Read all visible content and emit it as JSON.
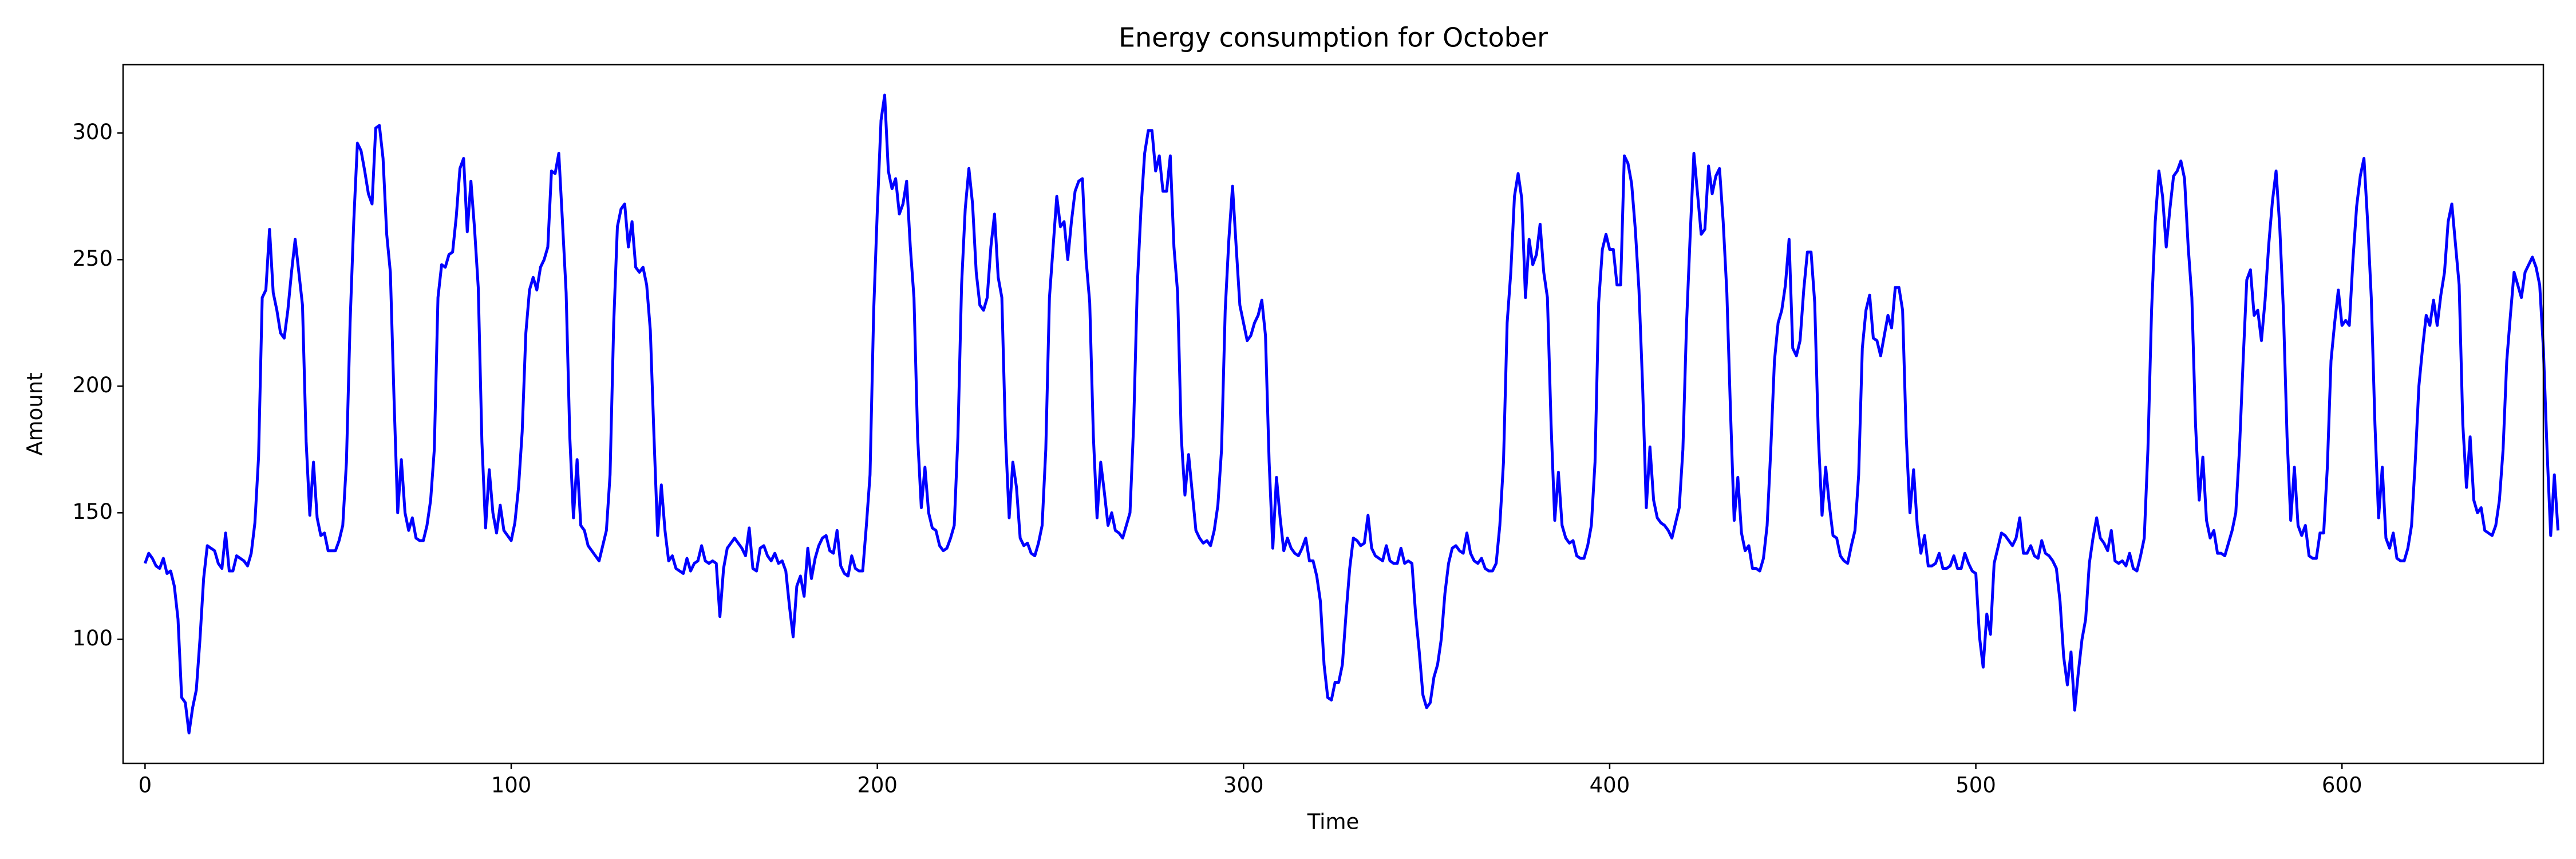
{
  "chart_data": {
    "type": "line",
    "title": "Energy consumption for October",
    "x_label": "Time",
    "y_label": "Amount",
    "color": "#0000ff",
    "xlim": [
      -6,
      655
    ],
    "xticks": [
      0,
      100,
      200,
      300,
      400,
      500,
      600
    ],
    "ylim": [
      51,
      327
    ],
    "yticks": [
      100,
      150,
      200,
      250,
      300
    ],
    "values": [
      130,
      134,
      132,
      129,
      128,
      132,
      126,
      127,
      121,
      108,
      77,
      75,
      63,
      73,
      80,
      100,
      124,
      137,
      136,
      135,
      130,
      128,
      142,
      127,
      127,
      133,
      132,
      131,
      129,
      134,
      146,
      172,
      235,
      238,
      262,
      237,
      230,
      221,
      219,
      230,
      245,
      258,
      245,
      232,
      178,
      149,
      170,
      148,
      141,
      142,
      135,
      135,
      135,
      139,
      145,
      170,
      225,
      265,
      296,
      293,
      285,
      276,
      272,
      302,
      303,
      290,
      260,
      245,
      195,
      150,
      171,
      150,
      143,
      148,
      140,
      139,
      139,
      145,
      155,
      175,
      235,
      248,
      247,
      252,
      253,
      267,
      286,
      290,
      261,
      281,
      262,
      239,
      178,
      144,
      167,
      150,
      142,
      153,
      143,
      141,
      139,
      146,
      160,
      182,
      221,
      238,
      243,
      238,
      247,
      250,
      255,
      285,
      284,
      292,
      265,
      237,
      180,
      148,
      171,
      145,
      143,
      137,
      135,
      133,
      131,
      137,
      143,
      165,
      225,
      263,
      270,
      272,
      255,
      265,
      247,
      245,
      247,
      240,
      222,
      180,
      141,
      161,
      143,
      131,
      133,
      128,
      127,
      126,
      132,
      127,
      130,
      131,
      137,
      131,
      130,
      131,
      130,
      109,
      128,
      136,
      138,
      140,
      138,
      136,
      133,
      144,
      128,
      127,
      136,
      137,
      133,
      131,
      134,
      130,
      131,
      127,
      113,
      101,
      121,
      125,
      117,
      136,
      124,
      132,
      137,
      140,
      141,
      135,
      134,
      143,
      129,
      126,
      125,
      133,
      128,
      127,
      127,
      145,
      165,
      230,
      270,
      305,
      315,
      285,
      278,
      282,
      268,
      272,
      281,
      255,
      235,
      180,
      152,
      168,
      150,
      144,
      143,
      137,
      135,
      136,
      140,
      145,
      180,
      240,
      270,
      286,
      272,
      245,
      232,
      230,
      235,
      255,
      268,
      243,
      235,
      180,
      148,
      170,
      160,
      140,
      137,
      138,
      134,
      133,
      138,
      145,
      175,
      235,
      255,
      275,
      263,
      265,
      250,
      265,
      277,
      281,
      282,
      250,
      233,
      180,
      148,
      170,
      158,
      145,
      150,
      143,
      142,
      140,
      145,
      150,
      185,
      240,
      270,
      292,
      301,
      301,
      285,
      291,
      277,
      277,
      291,
      255,
      237,
      180,
      157,
      173,
      158,
      143,
      140,
      138,
      139,
      137,
      143,
      153,
      175,
      230,
      258,
      279,
      255,
      232,
      225,
      218,
      220,
      225,
      228,
      234,
      220,
      170,
      136,
      164,
      148,
      135,
      140,
      136,
      134,
      133,
      136,
      140,
      131,
      131,
      125,
      115,
      90,
      77,
      76,
      83,
      83,
      90,
      110,
      128,
      140,
      139,
      137,
      138,
      149,
      136,
      133,
      132,
      131,
      137,
      131,
      130,
      130,
      136,
      130,
      131,
      130,
      110,
      95,
      78,
      73,
      75,
      85,
      90,
      100,
      118,
      130,
      136,
      137,
      135,
      134,
      142,
      134,
      131,
      130,
      132,
      128,
      127,
      127,
      130,
      145,
      170,
      225,
      245,
      275,
      284,
      274,
      235,
      258,
      248,
      252,
      264,
      245,
      235,
      185,
      147,
      166,
      145,
      140,
      138,
      139,
      133,
      132,
      132,
      137,
      145,
      170,
      233,
      254,
      260,
      254,
      254,
      240,
      240,
      291,
      288,
      280,
      262,
      238,
      200,
      152,
      176,
      155,
      148,
      146,
      145,
      143,
      140,
      146,
      152,
      175,
      225,
      260,
      292,
      276,
      260,
      262,
      287,
      276,
      283,
      286,
      265,
      237,
      190,
      147,
      164,
      142,
      135,
      137,
      128,
      128,
      127,
      132,
      145,
      175,
      210,
      225,
      230,
      240,
      258,
      215,
      212,
      218,
      238,
      253,
      253,
      233,
      180,
      149,
      168,
      153,
      141,
      140,
      133,
      131,
      130,
      137,
      143,
      165,
      215,
      230,
      236,
      219,
      218,
      212,
      220,
      228,
      223,
      239,
      239,
      230,
      180,
      150,
      167,
      145,
      134,
      141,
      129,
      129,
      130,
      134,
      128,
      128,
      129,
      133,
      128,
      128,
      134,
      130,
      127,
      126,
      101,
      89,
      110,
      102,
      130,
      136,
      142,
      141,
      139,
      137,
      140,
      148,
      134,
      134,
      137,
      133,
      132,
      139,
      134,
      133,
      131,
      128,
      115,
      93,
      82,
      95,
      72,
      87,
      100,
      108,
      130,
      140,
      148,
      140,
      138,
      135,
      143,
      131,
      130,
      131,
      129,
      134,
      128,
      127,
      133,
      140,
      175,
      230,
      265,
      285,
      275,
      255,
      270,
      283,
      285,
      289,
      282,
      255,
      235,
      185,
      155,
      172,
      147,
      140,
      143,
      134,
      134,
      133,
      138,
      143,
      150,
      175,
      210,
      242,
      246,
      228,
      230,
      218,
      234,
      256,
      273,
      285,
      263,
      230,
      180,
      147,
      168,
      145,
      141,
      145,
      133,
      132,
      132,
      142,
      142,
      168,
      210,
      225,
      238,
      224,
      226,
      224,
      250,
      271,
      283,
      290,
      265,
      235,
      185,
      148,
      168,
      140,
      136,
      142,
      132,
      131,
      131,
      136,
      145,
      170,
      200,
      215,
      228,
      224,
      234,
      224,
      236,
      245,
      265,
      272,
      256,
      240,
      185,
      160,
      180,
      155,
      150,
      152,
      143,
      142,
      141,
      145,
      155,
      175,
      210,
      228,
      245,
      240,
      235,
      245,
      248,
      251,
      247,
      240,
      215,
      175,
      141,
      165,
      143
    ]
  }
}
